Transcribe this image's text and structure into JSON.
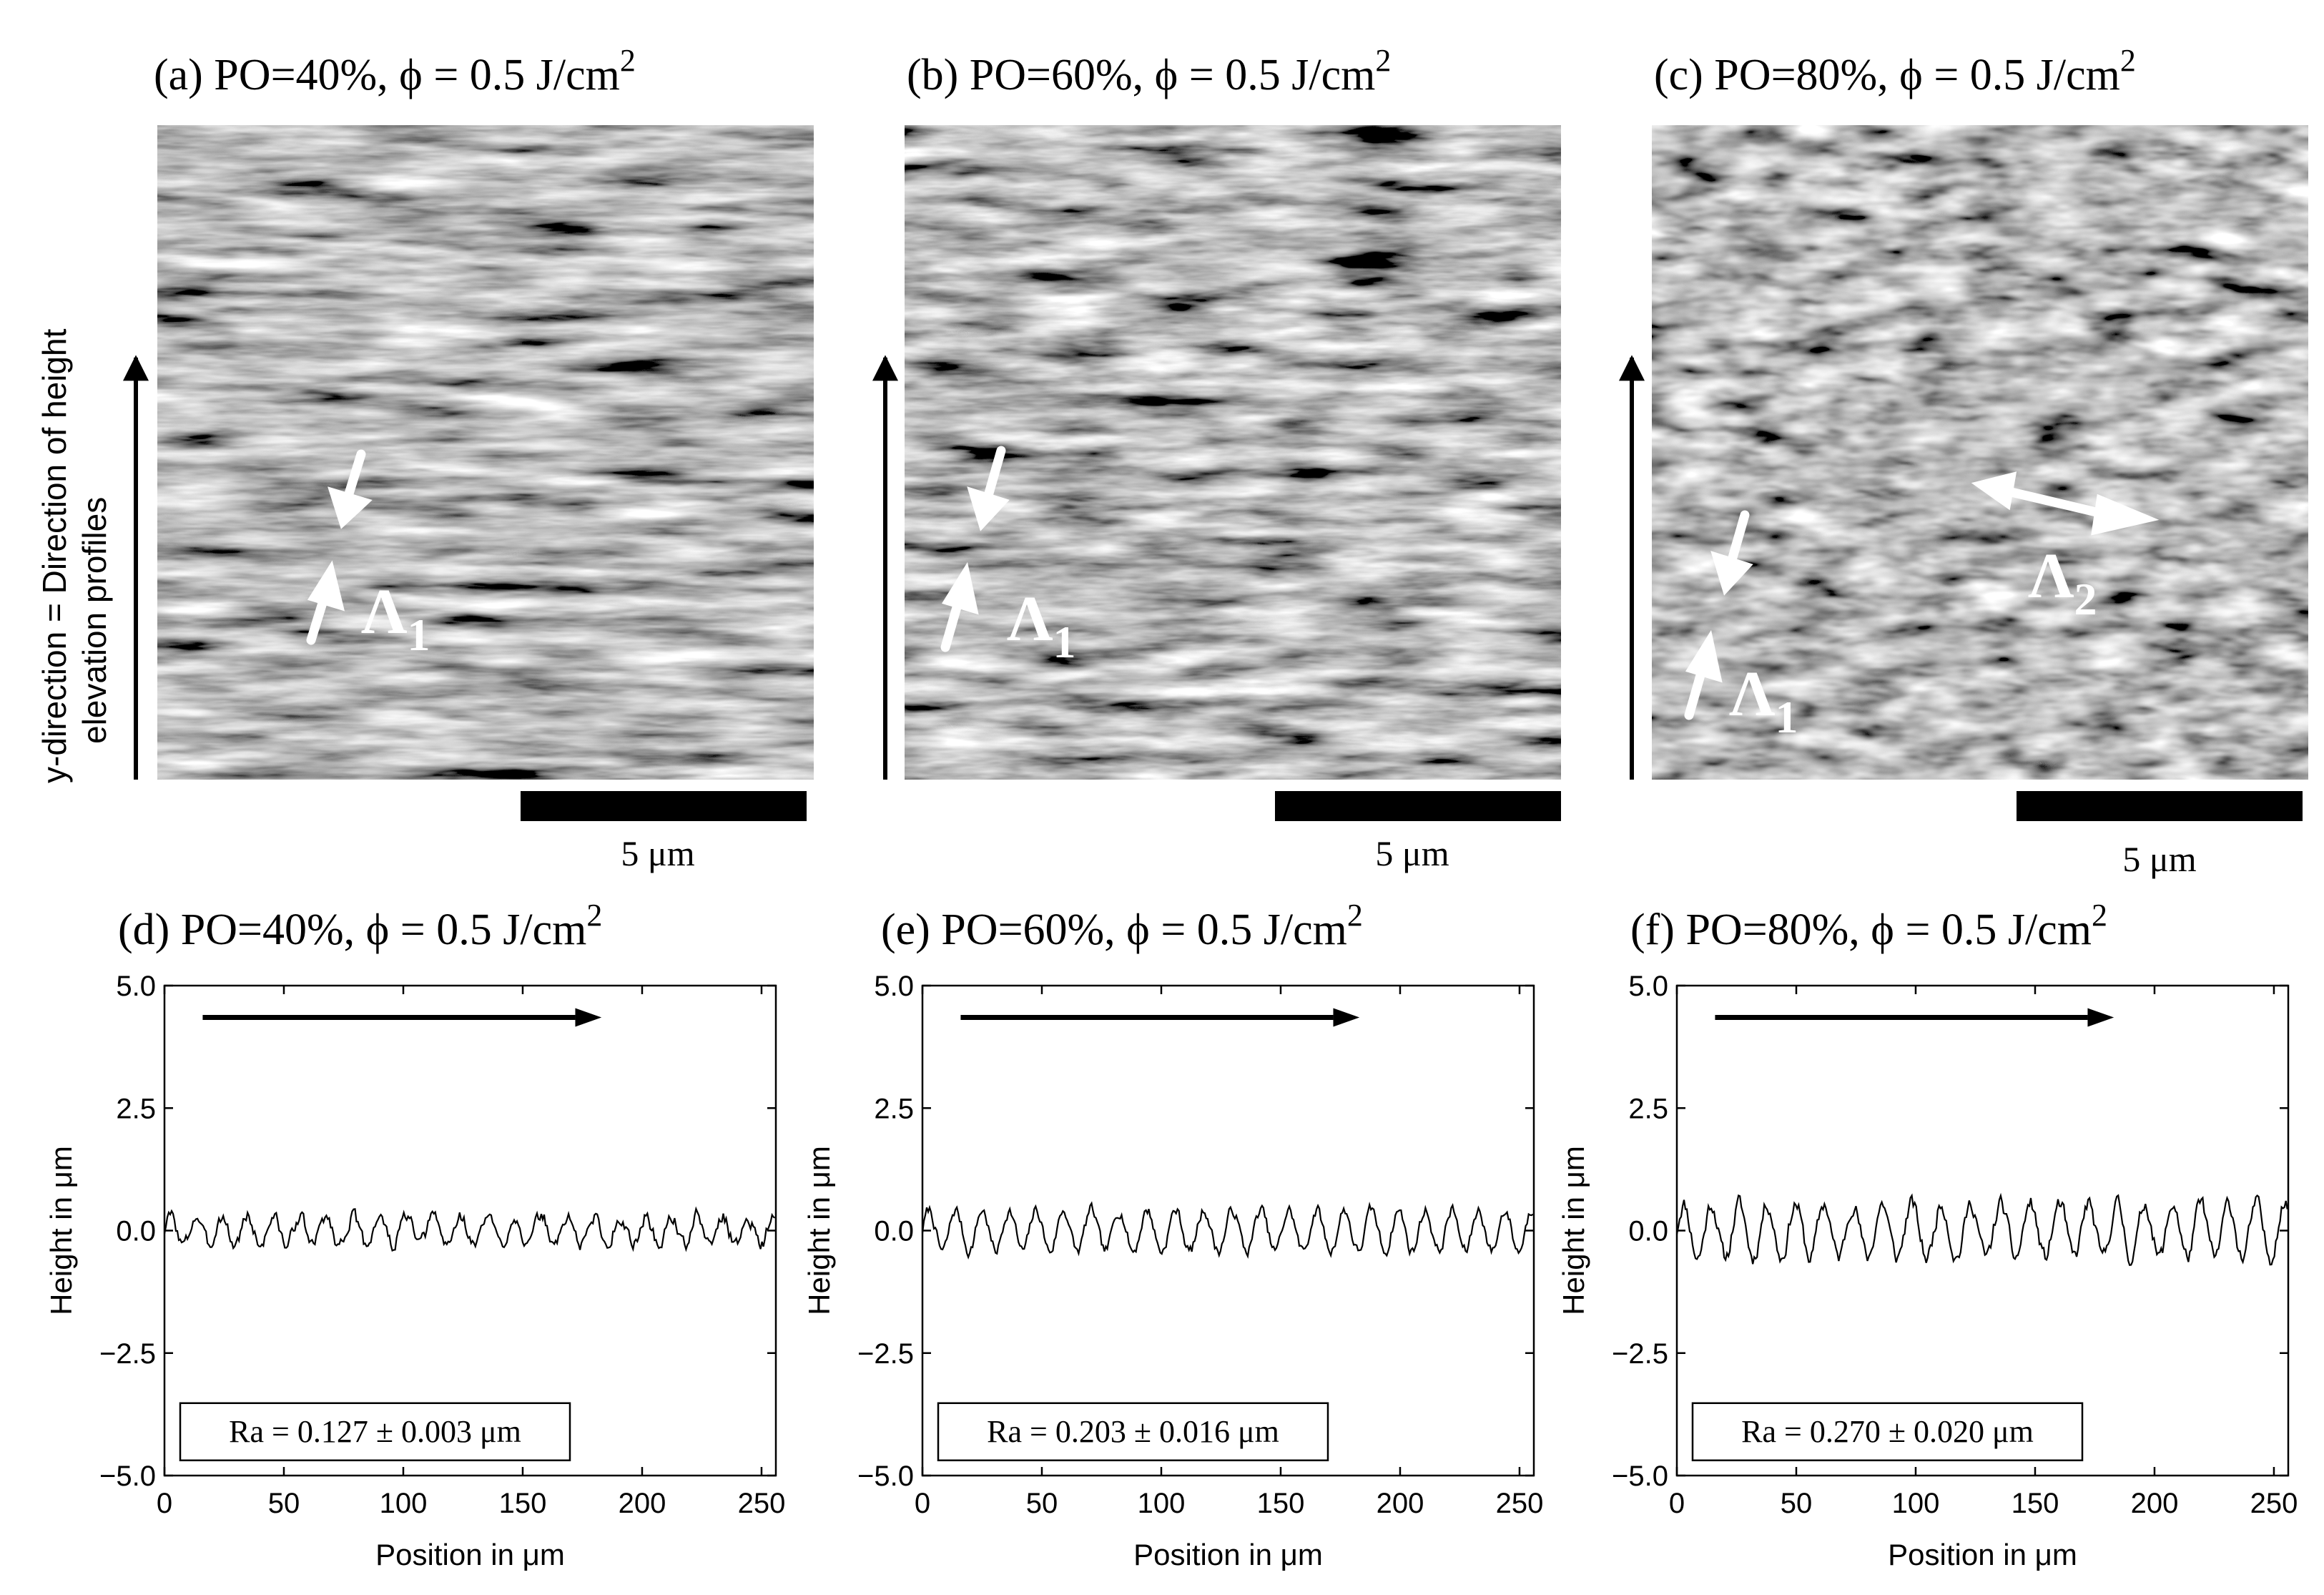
{
  "sem_panels": [
    {
      "title": "(a) PO=40%, ϕ = 0.5 J/cm",
      "sup": "2",
      "scale_label": "5 μm",
      "labels": [
        {
          "text": "Λ",
          "sub": "1"
        }
      ]
    },
    {
      "title": "(b) PO=60%, ϕ = 0.5 J/cm",
      "sup": "2",
      "scale_label": "5 μm",
      "labels": [
        {
          "text": "Λ",
          "sub": "1"
        }
      ]
    },
    {
      "title": "(c) PO=80%, ϕ = 0.5 J/cm",
      "sup": "2",
      "scale_label": "5 μm",
      "labels": [
        {
          "text": "Λ",
          "sub": "1"
        },
        {
          "text": "Λ",
          "sub": "2"
        }
      ]
    }
  ],
  "side_label": {
    "line1": "y-direction = Direction of height",
    "line2": "elevation profiles"
  },
  "chart_data": [
    {
      "type": "line",
      "title": "(d) PO=40%, ϕ = 0.5 J/cm",
      "title_sup": "2",
      "xlabel": "Position in μm",
      "ylabel": "Height in μm",
      "xlim": [
        0,
        256
      ],
      "ylim": [
        -5.0,
        5.0
      ],
      "xticks": [
        "0",
        "50",
        "100",
        "150",
        "200",
        "250"
      ],
      "yticks": [
        "5.0",
        "2.5",
        "0.0",
        "−2.5",
        "−5.0"
      ],
      "grid": false,
      "annotation": "Ra = 0.127 ± 0.003 μm",
      "series": [
        {
          "amplitude": 0.3,
          "period": 11,
          "noise": 0.12,
          "seed": 3,
          "x_start": 0,
          "x_end": 256
        }
      ]
    },
    {
      "type": "line",
      "title": "(e) PO=60%, ϕ = 0.5 J/cm",
      "title_sup": "2",
      "xlabel": "Position in μm",
      "ylabel": "Height in μm",
      "xlim": [
        0,
        256
      ],
      "ylim": [
        -5.0,
        5.0
      ],
      "xticks": [
        "0",
        "50",
        "100",
        "150",
        "200",
        "250"
      ],
      "yticks": [
        "5.0",
        "2.5",
        "0.0",
        "−2.5",
        "−5.0"
      ],
      "grid": false,
      "annotation": "Ra = 0.203 ± 0.016 μm",
      "series": [
        {
          "amplitude": 0.42,
          "period": 11.5,
          "noise": 0.1,
          "seed": 7,
          "x_start": 0,
          "x_end": 256
        }
      ]
    },
    {
      "type": "line",
      "title": "(f) PO=80%, ϕ = 0.5 J/cm",
      "title_sup": "2",
      "xlabel": "Position in μm",
      "ylabel": "Height in μm",
      "xlim": [
        0,
        256
      ],
      "ylim": [
        -5.0,
        5.0
      ],
      "xticks": [
        "0",
        "50",
        "100",
        "150",
        "200",
        "250"
      ],
      "yticks": [
        "5.0",
        "2.5",
        "0.0",
        "−2.5",
        "−5.0"
      ],
      "grid": false,
      "annotation": "Ra = 0.270 ± 0.020 μm",
      "series": [
        {
          "amplitude": 0.55,
          "period": 12,
          "noise": 0.14,
          "seed": 11,
          "x_start": 0,
          "x_end": 256
        }
      ]
    }
  ],
  "colors": {
    "line": "#000000",
    "background": "#ffffff",
    "arrow_light": "#ffffff"
  }
}
